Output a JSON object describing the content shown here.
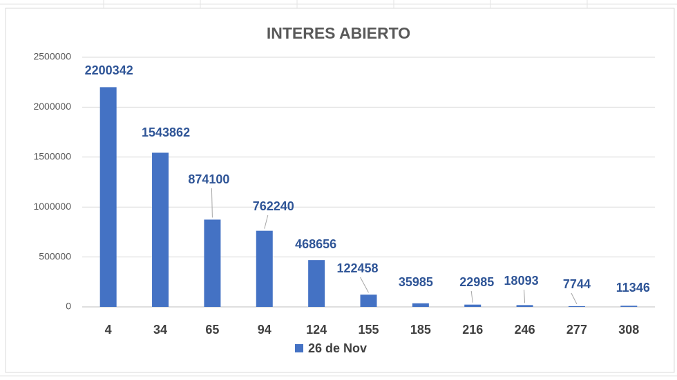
{
  "chart_data": {
    "type": "bar",
    "title": "INTERES ABIERTO",
    "categories": [
      4,
      34,
      65,
      94,
      124,
      155,
      185,
      216,
      246,
      277,
      308
    ],
    "series": [
      {
        "name": "26 de Nov",
        "color": "#4472c4",
        "values": [
          2200342,
          1543862,
          874100,
          762240,
          468656,
          122458,
          35985,
          22985,
          18093,
          7744,
          11346
        ]
      }
    ],
    "ylim": [
      0,
      2500000
    ],
    "yticks": [
      0,
      500000,
      1000000,
      1500000,
      2000000,
      2500000
    ],
    "grid": true,
    "legend": "bottom"
  }
}
